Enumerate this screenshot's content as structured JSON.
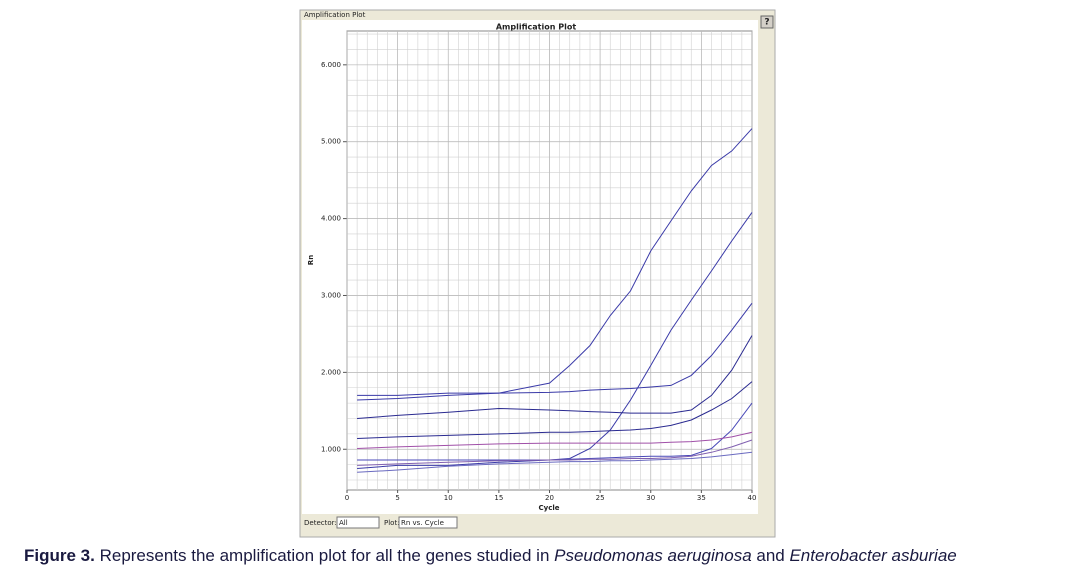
{
  "window_title": "Amplification Plot",
  "help_button": "?",
  "controls": {
    "detector_label": "Detector:",
    "detector_value": "All",
    "plot_label": "Plot:",
    "plot_value": "Rn vs. Cycle"
  },
  "caption": {
    "label": "Figure 3.",
    "text1": " Represents the amplification plot for all the genes studied in ",
    "species1": "Pseudomonas aeruginosa",
    "text2": " and ",
    "species2": "Enterobacter asburiae"
  },
  "chart_data": {
    "type": "line",
    "title": "Amplification Plot",
    "x_label": "Cycle",
    "y_label": "Rn",
    "x": [
      1,
      5,
      10,
      15,
      20,
      22,
      24,
      26,
      28,
      30,
      32,
      34,
      36,
      38,
      40
    ],
    "xlim": [
      0,
      40
    ],
    "xticks": [
      0,
      5,
      10,
      15,
      20,
      25,
      30,
      35,
      40
    ],
    "ylim": [
      0.47,
      6.44
    ],
    "yticks": [
      {
        "value": 1,
        "label": "1.000"
      },
      {
        "value": 2,
        "label": "2.000"
      },
      {
        "value": 3,
        "label": "3.000"
      },
      {
        "value": 4,
        "label": "4.000"
      },
      {
        "value": 5,
        "label": "5.000"
      },
      {
        "value": 6,
        "label": "6.000"
      }
    ],
    "grid": true,
    "minor_grid": true,
    "series": [
      {
        "color": "#3a3aa8",
        "values": [
          1.7,
          1.7,
          1.73,
          1.73,
          1.86,
          2.09,
          2.35,
          2.74,
          3.06,
          3.58,
          3.97,
          4.36,
          4.69,
          4.88,
          5.17
        ]
      },
      {
        "color": "#3a3aa8",
        "values": [
          0.75,
          0.79,
          0.79,
          0.83,
          0.86,
          0.88,
          1.01,
          1.25,
          1.64,
          2.09,
          2.55,
          2.94,
          3.32,
          3.71,
          4.08
        ]
      },
      {
        "color": "#3a3aa8",
        "values": [
          1.64,
          1.66,
          1.7,
          1.73,
          1.74,
          1.75,
          1.77,
          1.78,
          1.79,
          1.81,
          1.83,
          1.96,
          2.22,
          2.55,
          2.9
        ]
      },
      {
        "color": "#2a2a90",
        "values": [
          1.4,
          1.44,
          1.48,
          1.53,
          1.51,
          1.5,
          1.49,
          1.48,
          1.47,
          1.47,
          1.47,
          1.51,
          1.7,
          2.03,
          2.48
        ]
      },
      {
        "color": "#2a2a90",
        "values": [
          1.14,
          1.16,
          1.18,
          1.2,
          1.22,
          1.22,
          1.23,
          1.24,
          1.25,
          1.27,
          1.31,
          1.38,
          1.51,
          1.66,
          1.88
        ]
      },
      {
        "color": "#4a4ab8",
        "values": [
          0.86,
          0.86,
          0.86,
          0.86,
          0.86,
          0.87,
          0.88,
          0.89,
          0.9,
          0.91,
          0.91,
          0.92,
          1.01,
          1.25,
          1.6
        ]
      },
      {
        "color": "#a050a8",
        "values": [
          1.01,
          1.03,
          1.05,
          1.07,
          1.08,
          1.08,
          1.08,
          1.08,
          1.08,
          1.08,
          1.09,
          1.1,
          1.12,
          1.16,
          1.22
        ]
      },
      {
        "color": "#8060b0",
        "values": [
          0.79,
          0.81,
          0.83,
          0.85,
          0.86,
          0.86,
          0.87,
          0.87,
          0.88,
          0.88,
          0.89,
          0.91,
          0.96,
          1.03,
          1.12
        ]
      },
      {
        "color": "#6a6ac0",
        "values": [
          0.7,
          0.73,
          0.78,
          0.81,
          0.83,
          0.84,
          0.84,
          0.85,
          0.85,
          0.86,
          0.87,
          0.88,
          0.9,
          0.93,
          0.96
        ]
      }
    ]
  }
}
